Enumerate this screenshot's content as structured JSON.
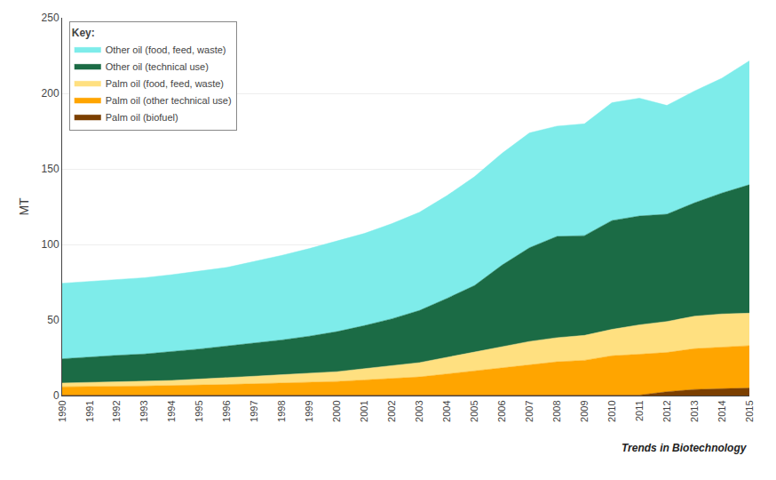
{
  "chart_data": {
    "type": "area",
    "stacked": true,
    "ylabel": "MT",
    "legend_title": "Key:",
    "annotations": [
      "Trends in Biotechnology"
    ],
    "x": [
      1990,
      1991,
      1992,
      1993,
      1994,
      1995,
      1996,
      1997,
      1998,
      1999,
      2000,
      2001,
      2002,
      2003,
      2004,
      2005,
      2006,
      2007,
      2008,
      2009,
      2010,
      2011,
      2012,
      2013,
      2014,
      2015
    ],
    "series": [
      {
        "name": "Palm oil (biofuel)",
        "color": "#7B3F00",
        "values": [
          0.3,
          0.3,
          0.3,
          0.3,
          0.3,
          0.3,
          0.3,
          0.3,
          0.3,
          0.3,
          0.3,
          0.3,
          0.3,
          0.3,
          0.3,
          0.3,
          0.3,
          0.3,
          0.3,
          0.3,
          0.3,
          0.3,
          2.5,
          4.0,
          4.5,
          5.0
        ]
      },
      {
        "name": "Palm oil (other technical use)",
        "color": "#FFA500",
        "values": [
          5.5,
          5.5,
          5.8,
          6.0,
          6.2,
          6.5,
          7.0,
          7.5,
          8.0,
          8.5,
          9.0,
          10.0,
          11.0,
          12.0,
          14.0,
          16.0,
          18.0,
          20.0,
          22.0,
          23.0,
          26.0,
          27.0,
          26.0,
          27.0,
          27.5,
          28.0
        ]
      },
      {
        "name": "Palm oil (food, feed, waste)",
        "color": "#FFE080",
        "values": [
          2.5,
          2.8,
          3.0,
          3.2,
          3.5,
          4.0,
          4.5,
          5.0,
          5.5,
          6.0,
          6.5,
          7.5,
          8.5,
          9.5,
          11.0,
          12.5,
          14.0,
          15.5,
          16.0,
          16.5,
          17.5,
          19.5,
          20.5,
          21.5,
          22.0,
          21.5
        ]
      },
      {
        "name": "Other oil (technical use)",
        "color": "#1B6B45",
        "values": [
          16.0,
          17.0,
          17.5,
          18.0,
          19.0,
          20.0,
          21.0,
          22.0,
          23.0,
          24.5,
          26.5,
          28.5,
          31.0,
          34.5,
          39.0,
          44.0,
          54.0,
          62.0,
          67.0,
          66.0,
          72.0,
          72.0,
          71.0,
          75.0,
          80.0,
          85.0
        ]
      },
      {
        "name": "Other oil (food, feed, waste)",
        "color": "#7EECEA",
        "values": [
          50.0,
          50.0,
          50.0,
          50.5,
          51.0,
          51.5,
          52.0,
          54.0,
          56.0,
          58.0,
          60.0,
          61.0,
          63.0,
          65.0,
          68.0,
          72.0,
          74.0,
          76.0,
          73.0,
          74.0,
          78.0,
          78.0,
          72.0,
          74.0,
          76.0,
          82.0
        ]
      }
    ],
    "xlim": [
      1990,
      2015
    ],
    "xticks": [
      1990,
      1991,
      1992,
      1993,
      1994,
      1995,
      1996,
      1997,
      1998,
      1999,
      2000,
      2001,
      2002,
      2003,
      2004,
      2005,
      2006,
      2007,
      2008,
      2009,
      2010,
      2011,
      2012,
      2013,
      2014,
      2015
    ],
    "ylim": [
      0,
      250
    ],
    "yticks": [
      0,
      50,
      100,
      150,
      200,
      250
    ],
    "grid": "y",
    "legend": "upper left"
  }
}
